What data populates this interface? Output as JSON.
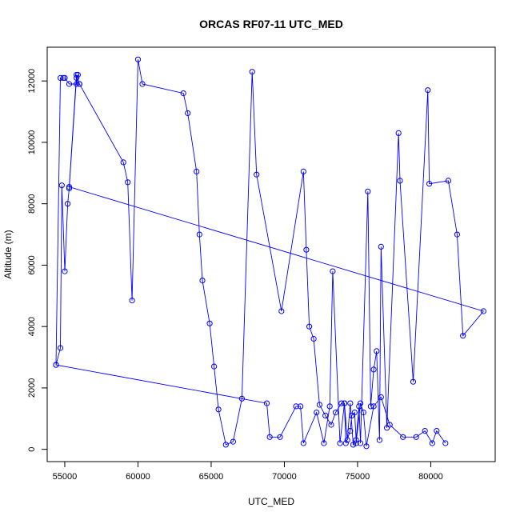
{
  "chart_data": {
    "type": "line",
    "title": "ORCAS RF07-11 UTC_MED",
    "xlabel": "UTC_MED",
    "ylabel": "Altitude (m)",
    "xlim": [
      53800,
      84400
    ],
    "ylim": [
      -400,
      13100
    ],
    "x_ticks": [
      55000,
      60000,
      65000,
      70000,
      75000,
      80000
    ],
    "y_ticks": [
      0,
      2000,
      4000,
      6000,
      8000,
      10000,
      12000
    ],
    "line_color": "#0000ff",
    "markers": "open-circle",
    "series": [
      {
        "x": [
          54400,
          54700,
          54800,
          55000,
          55200,
          55300,
          55800,
          55900,
          55800,
          56000,
          55300,
          55000,
          54900,
          54700,
          54400,
          68800,
          69000,
          69700,
          70800,
          71100,
          71300,
          72200,
          72700,
          73100,
          73300,
          73800,
          74100,
          74200,
          74500,
          74600,
          74800,
          74900,
          75100,
          75200,
          75700,
          75900,
          76100,
          76300,
          76500,
          76600,
          77000,
          77800,
          77900,
          78800,
          79800,
          79900,
          81200,
          81800,
          82200,
          83600,
          55300,
          55800,
          56000,
          59000,
          59300,
          59600,
          60000,
          60300,
          63100,
          63400,
          64000,
          64200,
          64400,
          64900,
          65200,
          65500,
          66000,
          66500,
          67100,
          67800,
          68100,
          69800,
          71300,
          71500,
          71700,
          72000,
          72400,
          72800,
          73200,
          73500,
          73900,
          74100,
          74300,
          74500,
          74700,
          74900,
          75200,
          75400,
          75600,
          76100,
          76600,
          77200,
          78100,
          79000,
          79600,
          80100,
          80400,
          81000
        ],
        "y": [
          2750,
          3300,
          8600,
          5800,
          8000,
          8500,
          12100,
          12200,
          11900,
          11900,
          11900,
          12100,
          12100,
          12100,
          2750,
          1500,
          400,
          400,
          1400,
          1400,
          200,
          1200,
          200,
          1400,
          5800,
          200,
          1500,
          200,
          600,
          1100,
          1200,
          300,
          1400,
          200,
          8400,
          1400,
          2600,
          3200,
          300,
          6600,
          700,
          10300,
          8750,
          2200,
          11700,
          8650,
          8750,
          7000,
          3700,
          4500,
          8550,
          12200,
          11900,
          9350,
          8700,
          4850,
          12700,
          11900,
          11600,
          10950,
          9050,
          7000,
          5500,
          4100,
          2700,
          1300,
          150,
          250,
          1650,
          12300,
          8950,
          4500,
          9050,
          6500,
          4000,
          3600,
          1450,
          1100,
          800,
          1200,
          1500,
          1500,
          300,
          1500,
          150,
          200,
          1500,
          1200,
          100,
          1400,
          1700,
          800,
          400,
          400,
          600,
          200,
          600,
          200
        ]
      }
    ]
  }
}
